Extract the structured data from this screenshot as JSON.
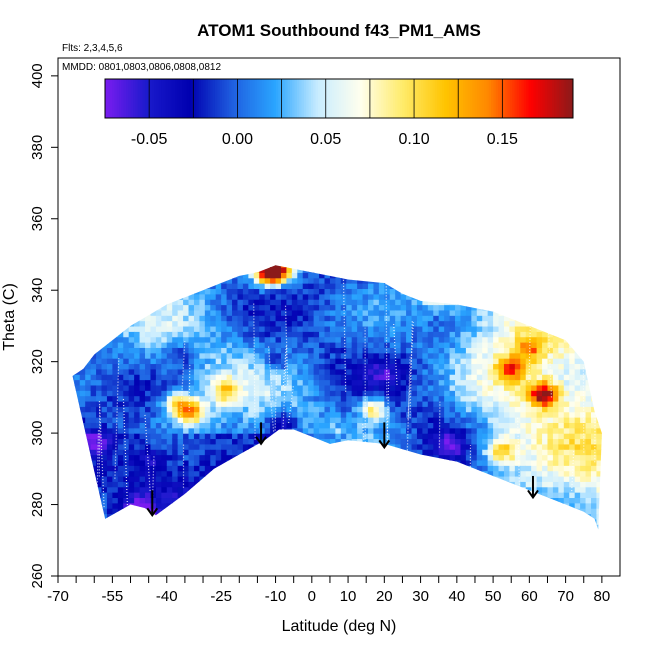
{
  "chart_data": {
    "type": "heatmap",
    "title": "ATOM1 Southbound f43_PM1_AMS",
    "subtitle": "Flts: 2,3,4,5,6",
    "annotation": "MMDD: 0801,0803,0806,0808,0812",
    "xlabel": "Latitude (deg N)",
    "ylabel": "Theta (C)",
    "xlim": [
      -70,
      85
    ],
    "ylim": [
      260,
      405
    ],
    "x_ticks": [
      "-70",
      "-55",
      "-40",
      "-25",
      "-10",
      "0",
      "10",
      "20",
      "30",
      "40",
      "50",
      "60",
      "70",
      "80"
    ],
    "y_ticks": [
      "260",
      "280",
      "300",
      "320",
      "340",
      "360",
      "380",
      "400"
    ],
    "colorbar": {
      "range": [
        -0.075,
        0.19
      ],
      "ticks": [
        "-0.05",
        "0.00",
        "0.05",
        "0.10",
        "0.15"
      ],
      "colors": [
        "#7a1cf0",
        "#1a1acc",
        "#0000b0",
        "#1f5fe0",
        "#2aa5ff",
        "#c8ecff",
        "#ffffee",
        "#ffeb6a",
        "#ffc400",
        "#ff8800",
        "#ff0000",
        "#8b1a1a"
      ]
    },
    "lower_boundary": {
      "x": [
        -57,
        -50,
        -46,
        -43,
        -35,
        -27,
        -20,
        -13,
        -9,
        -5,
        0,
        5,
        10,
        20,
        30,
        40,
        50,
        60,
        65,
        70,
        75,
        78,
        79
      ],
      "y": [
        276,
        280,
        279,
        277,
        283,
        290,
        294,
        298,
        301,
        301,
        299,
        297,
        298,
        297,
        294,
        292,
        288,
        284,
        282,
        280,
        278,
        276,
        273
      ]
    },
    "upper_boundary": {
      "x": [
        -66,
        -63,
        -60,
        -55,
        -50,
        -45,
        -40,
        -35,
        -30,
        -25,
        -20,
        -15,
        -10,
        -5,
        0,
        5,
        10,
        20,
        25,
        30,
        40,
        50,
        60,
        70,
        75,
        78,
        80
      ],
      "y": [
        316,
        318,
        322,
        326,
        330,
        333,
        336,
        338,
        340,
        342,
        344,
        345,
        347,
        346,
        345,
        344,
        343,
        342,
        339,
        337,
        336,
        334,
        330,
        326,
        320,
        306,
        300
      ]
    },
    "hotspots": [
      {
        "x": -12,
        "y": 345,
        "value": 0.17
      },
      {
        "x": -9,
        "y": 346,
        "value": 0.16
      },
      {
        "x": -33,
        "y": 306,
        "value": 0.12
      },
      {
        "x": -37,
        "y": 308,
        "value": 0.1
      },
      {
        "x": 17,
        "y": 307,
        "value": 0.11
      },
      {
        "x": 64,
        "y": 311,
        "value": 0.15
      },
      {
        "x": 35,
        "y": 339,
        "value": 0.1
      },
      {
        "x": 55,
        "y": 318,
        "value": 0.09
      },
      {
        "x": 60,
        "y": 324,
        "value": 0.08
      },
      {
        "x": 52,
        "y": 295,
        "value": 0.1
      },
      {
        "x": -24,
        "y": 312,
        "value": 0.09
      }
    ],
    "coldspots": [
      {
        "x": -8,
        "y": 303,
        "value": -0.06
      },
      {
        "x": -48,
        "y": 278,
        "value": -0.06
      },
      {
        "x": 38,
        "y": 297,
        "value": -0.05
      },
      {
        "x": -60,
        "y": 298,
        "value": -0.04
      },
      {
        "x": -36,
        "y": 322,
        "value": -0.03
      },
      {
        "x": 20,
        "y": 317,
        "value": -0.03
      },
      {
        "x": -10,
        "y": 320,
        "value": -0.02
      },
      {
        "x": -45,
        "y": 293,
        "value": -0.03
      }
    ],
    "background_value": 0.01,
    "arrows": [
      {
        "x": -44,
        "y_start": 284,
        "y_end": 277
      },
      {
        "x": -14,
        "y_start": 303,
        "y_end": 297
      },
      {
        "x": 20,
        "y_start": 303,
        "y_end": 296
      },
      {
        "x": 61,
        "y_start": 288,
        "y_end": 282
      }
    ],
    "grid": false,
    "legend_position": "top (horizontal colorbar inside plot)"
  }
}
